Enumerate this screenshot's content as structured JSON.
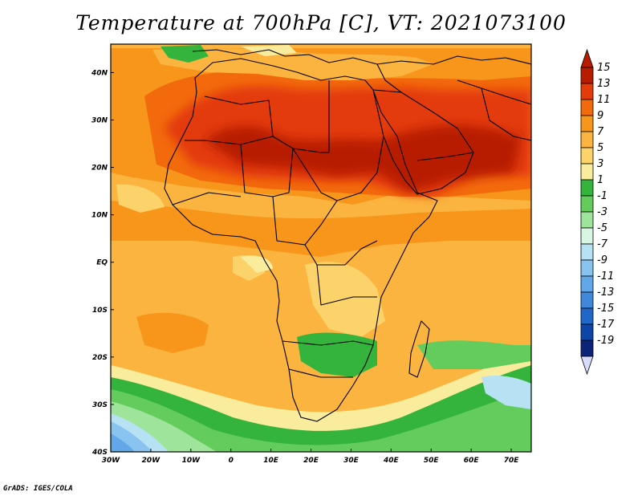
{
  "title": "Temperature at 700hPa [C], VT: 2021073100",
  "credit": "GrADS: IGES/COLA",
  "map": {
    "lon_range": [
      -30,
      75
    ],
    "lat_range": [
      -40,
      46
    ],
    "lon_labels": [
      {
        "lon": -30,
        "text": "30W"
      },
      {
        "lon": -20,
        "text": "20W"
      },
      {
        "lon": -10,
        "text": "10W"
      },
      {
        "lon": 0,
        "text": "0"
      },
      {
        "lon": 10,
        "text": "10E"
      },
      {
        "lon": 20,
        "text": "20E"
      },
      {
        "lon": 30,
        "text": "30E"
      },
      {
        "lon": 40,
        "text": "40E"
      },
      {
        "lon": 50,
        "text": "50E"
      },
      {
        "lon": 60,
        "text": "60E"
      },
      {
        "lon": 70,
        "text": "70E"
      }
    ],
    "lat_labels": [
      {
        "lat": 40,
        "text": "40N"
      },
      {
        "lat": 30,
        "text": "30N"
      },
      {
        "lat": 20,
        "text": "20N"
      },
      {
        "lat": 10,
        "text": "10N"
      },
      {
        "lat": 0,
        "text": "EQ"
      },
      {
        "lat": -10,
        "text": "10S"
      },
      {
        "lat": -20,
        "text": "20S"
      },
      {
        "lat": -30,
        "text": "30S"
      },
      {
        "lat": -40,
        "text": "40S"
      }
    ]
  },
  "colorbar": {
    "levels": [
      {
        "label": "15",
        "color": "#b81c00"
      },
      {
        "label": "13",
        "color": "#e33b0a"
      },
      {
        "label": "11",
        "color": "#f36a0d"
      },
      {
        "label": "9",
        "color": "#f7961b"
      },
      {
        "label": "7",
        "color": "#fbb43f"
      },
      {
        "label": "5",
        "color": "#fcd26b"
      },
      {
        "label": "3",
        "color": "#f9ec9c"
      },
      {
        "label": "1",
        "color": "#34b43c"
      },
      {
        "label": "-1",
        "color": "#63cc5c"
      },
      {
        "label": "-3",
        "color": "#9ee49a"
      },
      {
        "label": "-5",
        "color": "#d9f5e3"
      },
      {
        "label": "-7",
        "color": "#b7e2f4"
      },
      {
        "label": "-9",
        "color": "#89c3ef"
      },
      {
        "label": "-11",
        "color": "#62a8e8"
      },
      {
        "label": "-13",
        "color": "#3f88dc"
      },
      {
        "label": "-15",
        "color": "#2167c9"
      },
      {
        "label": "-17",
        "color": "#0e45a8"
      },
      {
        "label": "-19",
        "color": "#0b2478"
      }
    ],
    "top_color": "#b81c00",
    "bottom_color": "#d6dcfa"
  }
}
